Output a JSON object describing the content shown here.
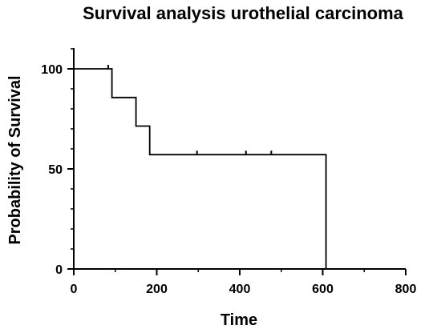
{
  "chart_data": {
    "type": "line",
    "step": true,
    "title": "Survival analysis urothelial carcinoma",
    "xlabel": "Time",
    "ylabel": "Probability of Survival",
    "xlim": [
      0,
      800
    ],
    "ylim": [
      0,
      100
    ],
    "xticks": [
      0,
      200,
      400,
      600,
      800
    ],
    "yticks": [
      0,
      50,
      100
    ],
    "xtick_labels": [
      "0",
      "200",
      "400",
      "600",
      "800"
    ],
    "ytick_labels": [
      "0",
      "50",
      "100"
    ],
    "grid": false,
    "series": [
      {
        "x": [
          0,
          92,
          92,
          150,
          150,
          183,
          183,
          608,
          608
        ],
        "y": [
          100,
          100,
          85.7,
          85.7,
          71.4,
          71.4,
          57.1,
          57.1,
          0
        ],
        "censored": [
          {
            "x": 83,
            "y": 100
          },
          {
            "x": 297,
            "y": 57.1
          },
          {
            "x": 415,
            "y": 57.1
          },
          {
            "x": 476,
            "y": 57.1
          }
        ]
      }
    ],
    "colors": {
      "line": "#000000",
      "axis": "#000000"
    }
  }
}
